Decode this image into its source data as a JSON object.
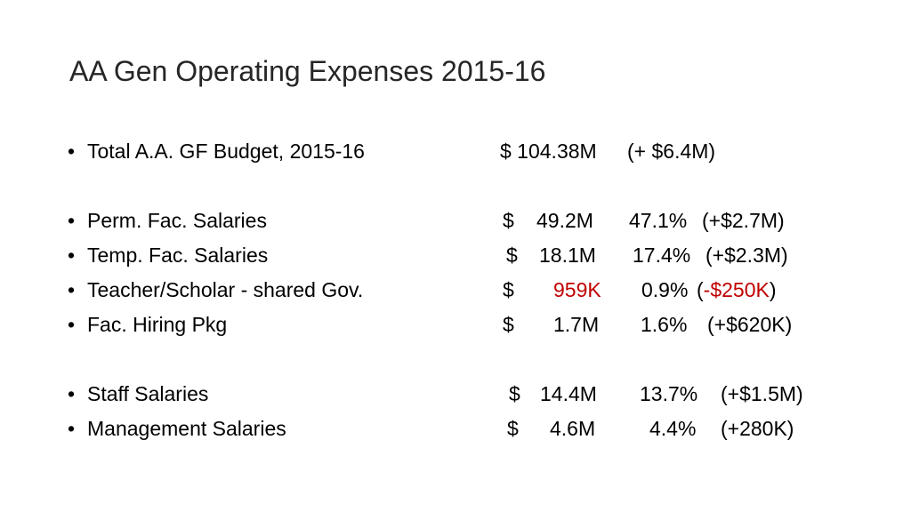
{
  "slide": {
    "title": "AA Gen Operating Expenses 2015-16",
    "bullet": "•",
    "colors": {
      "highlight": "#c00000",
      "title": "#262626"
    },
    "total": {
      "label": "Total A.A. GF Budget, 2015-16",
      "amount": "$ 104.38M",
      "change": "(+ $6.4M)"
    },
    "faculty": [
      {
        "label": "Perm. Fac. Salaries",
        "currency": "$",
        "amount": "49.2M",
        "pct": "47.1%",
        "change": "(+$2.7M)"
      },
      {
        "label": "Temp. Fac. Salaries",
        "currency": "$",
        "amount": "18.1M",
        "pct": "17.4%",
        "change": "(+$2.3M)"
      },
      {
        "label": "Teacher/Scholar - shared Gov.",
        "currency": "$",
        "amount": "959K",
        "pct": "0.9%",
        "change": "-$250K"
      },
      {
        "label": "Fac. Hiring Pkg",
        "currency": "$",
        "amount": "1.7M",
        "pct": "1.6%",
        "change": "(+$620K)"
      }
    ],
    "staff": [
      {
        "label": "Staff Salaries",
        "currency": "$",
        "amount": "14.4M",
        "pct": "13.7%",
        "change": "(+$1.5M)"
      },
      {
        "label": "Management Salaries",
        "currency": "$",
        "amount": "4.6M",
        "pct": "4.4%",
        "change": "(+280K)"
      }
    ]
  }
}
